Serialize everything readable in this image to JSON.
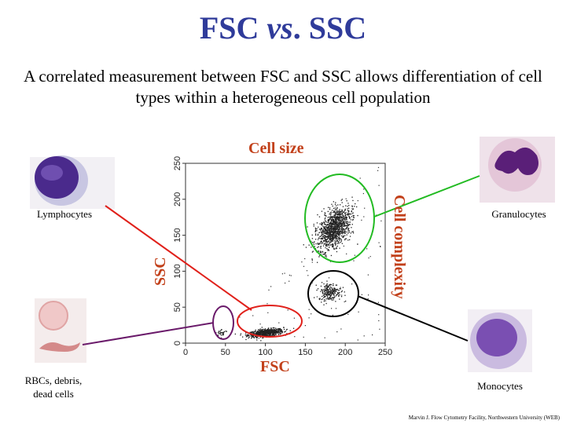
{
  "title": {
    "part1": "FSC ",
    "vs": "vs",
    "part2": ". SSC"
  },
  "subtitle": "A correlated measurement between FSC and SSC allows differentiation of cell types within a heterogeneous cell population",
  "labels": {
    "cell_size": "Cell size",
    "cell_complexity": "Cell complexity",
    "ssc": "SSC",
    "fsc": "FSC",
    "lymphocytes": "Lymphocytes",
    "granulocytes": "Granulocytes",
    "rbcs": "RBCs, debris,",
    "rbcs2": "dead cells",
    "monocytes": "Monocytes"
  },
  "credit": "Marvin J. Flow Cytometry Facility, Northwestern University (WEB)",
  "colors": {
    "title": "#2f3b9a",
    "accent_red": "#c2401a",
    "lymph_line": "#e0201a",
    "gran_line": "#22bb22",
    "rbc_line": "#6a1a6a",
    "mono_line": "#000000"
  },
  "chart_data": {
    "type": "scatter",
    "xlabel": "FSC",
    "ylabel": "SSC",
    "xlim": [
      0,
      250
    ],
    "ylim": [
      0,
      250
    ],
    "xticks": [
      "0",
      "50",
      "100",
      "150",
      "200",
      "250"
    ],
    "yticks": [
      "0",
      "50",
      "100",
      "150",
      "200",
      "250"
    ],
    "populations": [
      {
        "name": "Lymphocytes",
        "center": [
          100,
          15
        ],
        "spread": [
          22,
          5
        ],
        "n": 650
      },
      {
        "name": "RBCs, debris, dead cells",
        "center": [
          45,
          15
        ],
        "spread": [
          8,
          5
        ],
        "n": 30
      },
      {
        "name": "Granulocytes",
        "center": [
          185,
          160
        ],
        "spread": [
          18,
          30
        ],
        "n": 1100
      },
      {
        "name": "Monocytes",
        "center": [
          180,
          72
        ],
        "spread": [
          14,
          12
        ],
        "n": 220
      }
    ]
  }
}
